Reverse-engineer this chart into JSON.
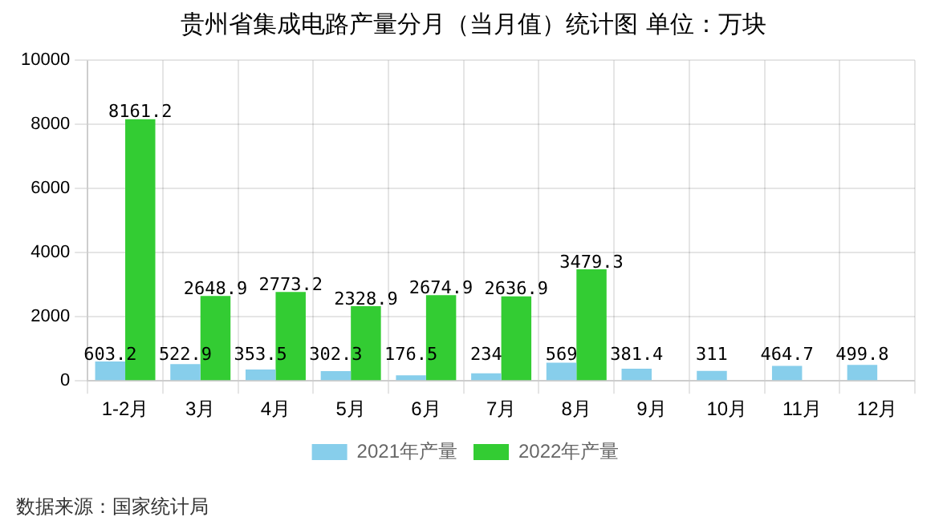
{
  "chart_data": {
    "type": "bar",
    "title": "贵州省集成电路产量分月（当月值）统计图 单位：万块",
    "categories": [
      "1-2月",
      "3月",
      "4月",
      "5月",
      "6月",
      "7月",
      "8月",
      "9月",
      "10月",
      "11月",
      "12月"
    ],
    "series": [
      {
        "name": "2021年产量",
        "color": "#87ceeb",
        "values": [
          603.2,
          522.9,
          353.5,
          302.3,
          176.5,
          234,
          569,
          381.4,
          311,
          464.7,
          499.8
        ]
      },
      {
        "name": "2022年产量",
        "color": "#33cc33",
        "values": [
          8161.2,
          2648.9,
          2773.2,
          2328.9,
          2674.9,
          2636.9,
          3479.3,
          null,
          null,
          null,
          null
        ]
      }
    ],
    "ylim": [
      0,
      10000
    ],
    "yticks": [
      0,
      2000,
      4000,
      6000,
      8000,
      10000
    ],
    "grid": true,
    "legend": "bottom",
    "data_labels": true,
    "annotations": [
      "数据来源：国家统计局"
    ]
  }
}
